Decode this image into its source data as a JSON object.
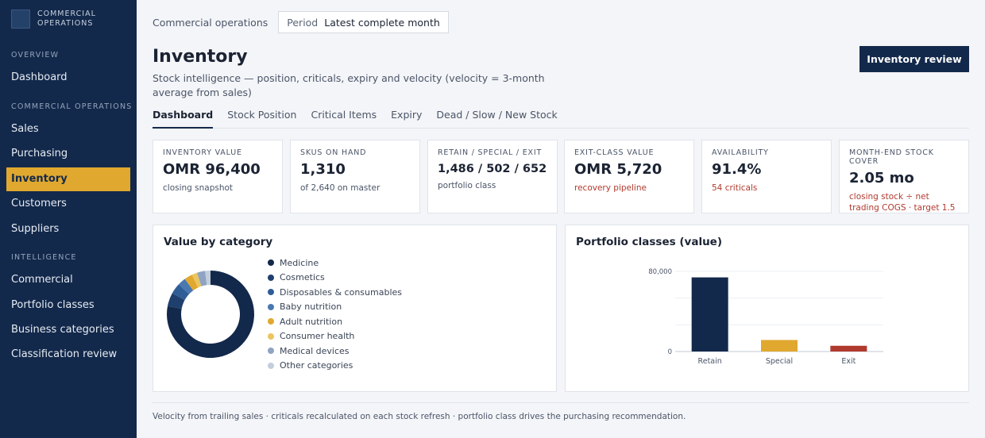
{
  "sidebar": {
    "brand": "COMMERCIAL OPERATIONS",
    "sections": [
      "OVERVIEW",
      "COMMERCIAL OPERATIONS",
      "INTELLIGENCE"
    ],
    "items": [
      {
        "label": "Dashboard"
      },
      {
        "label": "Sales"
      },
      {
        "label": "Purchasing"
      },
      {
        "label": "Inventory",
        "active": true
      },
      {
        "label": "Customers"
      },
      {
        "label": "Suppliers"
      },
      {
        "label": "Commercial"
      },
      {
        "label": "Portfolio classes"
      },
      {
        "label": "Business categories"
      },
      {
        "label": "Classification review"
      }
    ]
  },
  "header": {
    "breadcrumb": "Commercial operations",
    "period_label": "Period",
    "period_value": "Latest complete month",
    "title": "Inventory",
    "subtitle": "Stock intelligence — position, criticals, expiry and velocity (velocity = 3-month average from sales)",
    "action_label": "Inventory review"
  },
  "tabs": [
    "Dashboard",
    "Stock Position",
    "Critical Items",
    "Expiry",
    "Dead / Slow / New Stock"
  ],
  "active_tab": "Dashboard",
  "kpis": [
    {
      "label": "INVENTORY VALUE",
      "value": "OMR 96,400",
      "note": "closing snapshot",
      "note_alert": false
    },
    {
      "label": "SKUS ON HAND",
      "value": "1,310",
      "note": "of 2,640 on master",
      "note_alert": false
    },
    {
      "label": "RETAIN / SPECIAL / EXIT",
      "value": "1,486 / 502 / 652",
      "note": "portfolio class",
      "note_alert": false
    },
    {
      "label": "EXIT-CLASS VALUE",
      "value": "OMR 5,720",
      "note": "recovery pipeline",
      "note_alert": true
    },
    {
      "label": "AVAILABILITY",
      "value": "91.4%",
      "note": "54 criticals",
      "note_alert": true
    },
    {
      "label": "MONTH-END STOCK COVER",
      "value": "2.05 mo",
      "note": "closing stock ÷ net trading COGS · target 1.5",
      "note_alert": true
    }
  ],
  "panels": {
    "category_title": "Value by category",
    "portfolio_title": "Portfolio classes (value)"
  },
  "chart_data": [
    {
      "type": "pie",
      "title": "Value by category",
      "categories": [
        "Medicine",
        "Cosmetics",
        "Disposables & consumables",
        "Baby nutrition",
        "Adult nutrition",
        "Consumer health",
        "Medical devices",
        "Other categories"
      ],
      "values": [
        78,
        5,
        4,
        3,
        3,
        2,
        3,
        2
      ],
      "colors": [
        "#13294b",
        "#1f3f6e",
        "#2f5d96",
        "#4a78b0",
        "#e0a82e",
        "#ebc55f",
        "#8fa3c2",
        "#c3cedd"
      ]
    },
    {
      "type": "bar",
      "title": "Portfolio classes (value)",
      "categories": [
        "Retain",
        "Special",
        "Exit"
      ],
      "values": [
        74000,
        11500,
        5720
      ],
      "colors": [
        "#13294b",
        "#e0a82e",
        "#b03a2e"
      ],
      "ylim": [
        0,
        80000
      ],
      "yticks": [
        {
          "value": 0,
          "label": "0"
        },
        {
          "value": 80000,
          "label": "80,000"
        }
      ],
      "grid": true
    }
  ],
  "footer": "Velocity from trailing sales · criticals recalculated on each stock refresh · portfolio class drives the purchasing recommendation."
}
